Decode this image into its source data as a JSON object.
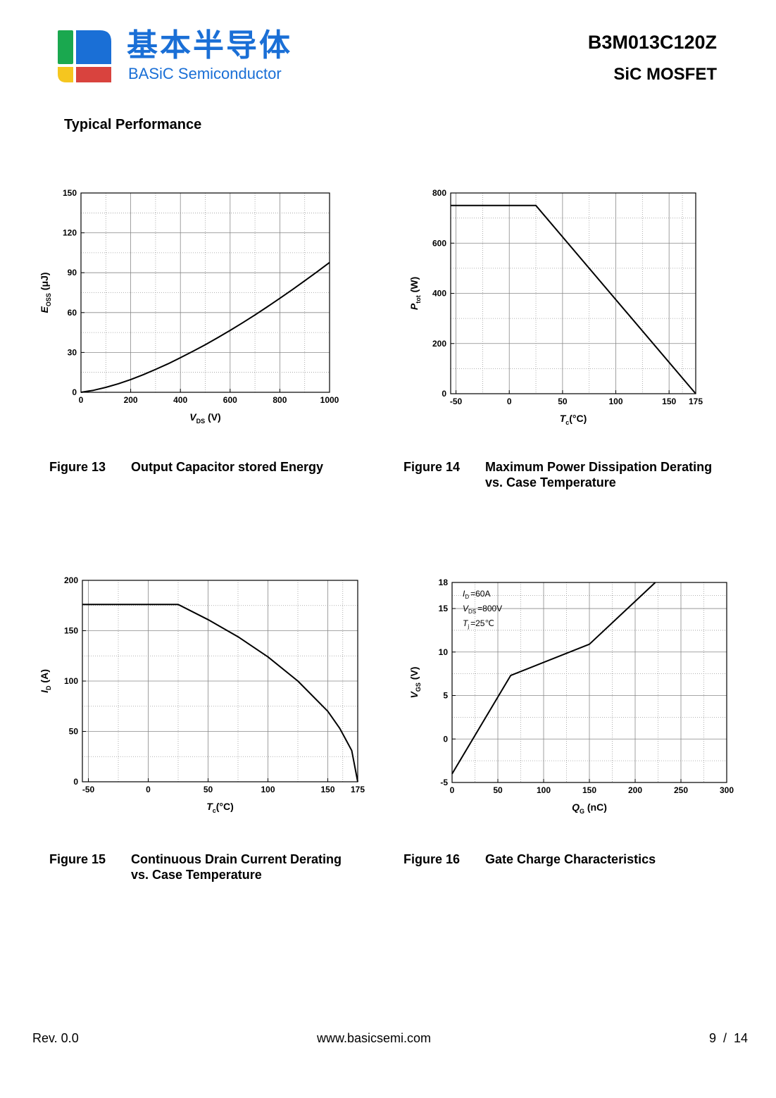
{
  "header": {
    "logo_cn": "基本半导体",
    "logo_en": "BASiC Semiconductor",
    "logo_colors": {
      "green": "#1aa84f",
      "blue": "#1a6fd6",
      "yellow": "#f5c61f",
      "red": "#d9433e"
    },
    "part_number": "B3M013C120Z",
    "product_type": "SiC MOSFET"
  },
  "section_title": "Typical Performance",
  "figures": [
    {
      "number": "Figure 13",
      "title": "Output Capacitor stored Energy",
      "chart_data": {
        "type": "line",
        "x": [
          0,
          50,
          100,
          150,
          200,
          250,
          300,
          350,
          400,
          450,
          500,
          550,
          600,
          650,
          700,
          750,
          800,
          850,
          900,
          950,
          1000
        ],
        "series": [
          {
            "values": [
              0,
              1.5,
              3.7,
              6.4,
              9.6,
              13.2,
              17.2,
              21.4,
              26.0,
              30.8,
              35.8,
              41.1,
              46.6,
              52.3,
              58.2,
              64.4,
              70.7,
              77.2,
              83.9,
              90.7,
              97.7
            ]
          }
        ],
        "xlabel_main": "V",
        "xlabel_sub": "DS",
        "xlabel_unit": " (V)",
        "ylabel_main": "E",
        "ylabel_sub": "OSS",
        "ylabel_unit": " (μJ)",
        "xlim": [
          0,
          1000
        ],
        "ylim": [
          0,
          150
        ],
        "xticks": [
          "0",
          "200",
          "400",
          "600",
          "800",
          "1000"
        ],
        "yticks": [
          "0",
          "30",
          "60",
          "90",
          "120",
          "150"
        ],
        "grid": true
      }
    },
    {
      "number": "Figure 14",
      "title": "Maximum Power Dissipation Derating\nvs. Case Temperature",
      "chart_data": {
        "type": "line",
        "x": [
          -55,
          25,
          175
        ],
        "series": [
          {
            "values": [
              750,
              750,
              0
            ]
          }
        ],
        "xlabel_main": "T",
        "xlabel_sub": "c",
        "xlabel_unit": "(°C)",
        "ylabel_main": "P",
        "ylabel_sub": "tot",
        "ylabel_unit": " (W)",
        "xlim": [
          -55,
          175
        ],
        "ylim": [
          0,
          800
        ],
        "xticks": [
          "-50",
          "0",
          "50",
          "100",
          "150",
          "175"
        ],
        "yticks": [
          "0",
          "200",
          "400",
          "600",
          "800"
        ],
        "grid": true
      }
    },
    {
      "number": "Figure 15",
      "title": "Continuous Drain Current Derating\nvs. Case Temperature",
      "chart_data": {
        "type": "line",
        "x": [
          -55,
          25,
          50,
          75,
          100,
          125,
          150,
          160,
          165,
          170,
          175
        ],
        "series": [
          {
            "values": [
              176,
              176,
              161,
              144,
              124,
              100,
              70,
              53,
              42,
              31,
              0
            ]
          }
        ],
        "xlabel_main": "T",
        "xlabel_sub": "c",
        "xlabel_unit": "(°C)",
        "ylabel_main": "I",
        "ylabel_sub": "D",
        "ylabel_unit": " (A)",
        "xlim": [
          -55,
          175
        ],
        "ylim": [
          0,
          200
        ],
        "xticks": [
          "-50",
          "0",
          "50",
          "100",
          "150",
          "175"
        ],
        "yticks": [
          "0",
          "50",
          "100",
          "150",
          "200"
        ],
        "grid": true
      }
    },
    {
      "number": "Figure 16",
      "title": "Gate Charge Characteristics",
      "chart_data": {
        "type": "line",
        "x": [
          0,
          64,
          150,
          222
        ],
        "series": [
          {
            "values": [
              -4,
              7.3,
              10.9,
              18
            ]
          }
        ],
        "xlabel_main": "Q",
        "xlabel_sub": "G",
        "xlabel_unit": " (nC)",
        "ylabel_main": "V",
        "ylabel_sub": "GS",
        "ylabel_unit": " (V)",
        "xlim": [
          0,
          300
        ],
        "ylim": [
          -5,
          18
        ],
        "xticks": [
          "0",
          "50",
          "100",
          "150",
          "200",
          "250",
          "300"
        ],
        "yticks": [
          "-5",
          "0",
          "5",
          "10",
          "15",
          "18"
        ],
        "annotations": [
          {
            "main": "I",
            "sub": "D",
            "text": "=60A"
          },
          {
            "main": "V",
            "sub": "DS",
            "text": "=800V"
          },
          {
            "main": "T",
            "sub": "j",
            "text": "=25℃"
          }
        ],
        "grid": true
      }
    }
  ],
  "footer": {
    "revision": "Rev. 0.0",
    "website": "www.basicsemi.com",
    "page": "9  /  14"
  }
}
